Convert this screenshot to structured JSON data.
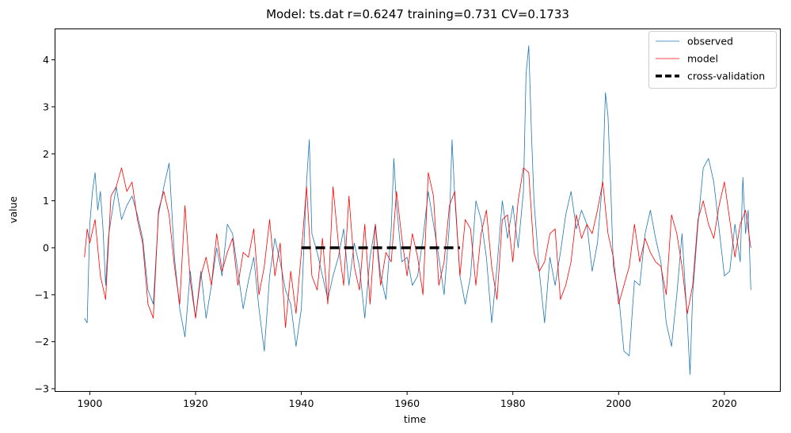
{
  "chart_data": {
    "type": "line",
    "title": "Model: ts.dat  r=0.6247  training=0.731  CV=0.1733",
    "xlabel": "time",
    "ylabel": "value",
    "xlim": [
      1893.5,
      2030.5
    ],
    "ylim": [
      -3.05,
      4.65
    ],
    "x_ticks": [
      1900,
      1920,
      1940,
      1960,
      1980,
      2000,
      2020
    ],
    "y_ticks": [
      -3,
      -2,
      -1,
      0,
      1,
      2,
      3,
      4
    ],
    "grid": false,
    "legend_position": "top-right",
    "series": [
      {
        "name": "observed",
        "color": "#1f77b4",
        "x": [
          1899.0,
          1899.5,
          1900.0,
          1900.5,
          1901.0,
          1901.5,
          1902.0,
          1902.5,
          1903.0,
          1903.5,
          1904.0,
          1905.0,
          1906.0,
          1907.0,
          1908.0,
          1909.0,
          1910.0,
          1911.0,
          1912.0,
          1913.0,
          1914.0,
          1915.0,
          1916.0,
          1917.0,
          1918.0,
          1919.0,
          1920.0,
          1921.0,
          1922.0,
          1923.0,
          1924.0,
          1925.0,
          1926.0,
          1927.0,
          1928.0,
          1929.0,
          1930.0,
          1931.0,
          1932.0,
          1933.0,
          1934.0,
          1935.0,
          1936.0,
          1937.0,
          1938.0,
          1939.0,
          1940.0,
          1941.0,
          1941.5,
          1942.0,
          1943.0,
          1944.0,
          1945.0,
          1946.0,
          1947.0,
          1948.0,
          1949.0,
          1950.0,
          1951.0,
          1952.0,
          1953.0,
          1954.0,
          1955.0,
          1956.0,
          1957.0,
          1957.5,
          1958.0,
          1959.0,
          1960.0,
          1961.0,
          1962.0,
          1963.0,
          1964.0,
          1965.0,
          1966.0,
          1967.0,
          1968.0,
          1968.5,
          1969.0,
          1970.0,
          1971.0,
          1972.0,
          1973.0,
          1974.0,
          1975.0,
          1976.0,
          1977.0,
          1978.0,
          1979.0,
          1980.0,
          1981.0,
          1982.0,
          1982.5,
          1983.0,
          1983.5,
          1984.0,
          1985.0,
          1986.0,
          1987.0,
          1988.0,
          1989.0,
          1990.0,
          1991.0,
          1992.0,
          1993.0,
          1994.0,
          1995.0,
          1996.0,
          1997.0,
          1997.5,
          1998.0,
          1998.5,
          1999.0,
          2000.0,
          2001.0,
          2002.0,
          2003.0,
          2004.0,
          2005.0,
          2006.0,
          2007.0,
          2008.0,
          2009.0,
          2010.0,
          2011.0,
          2012.0,
          2013.0,
          2013.5,
          2014.0,
          2015.0,
          2016.0,
          2017.0,
          2018.0,
          2019.0,
          2020.0,
          2021.0,
          2022.0,
          2023.0,
          2023.5,
          2024.0,
          2024.5,
          2025.0
        ],
        "y": [
          -1.5,
          -1.6,
          0.5,
          1.2,
          1.6,
          0.8,
          1.2,
          0.4,
          -0.8,
          0.2,
          0.6,
          1.3,
          0.6,
          0.9,
          1.1,
          0.7,
          0.2,
          -0.9,
          -1.2,
          0.7,
          1.3,
          1.8,
          -0.2,
          -1.3,
          -1.9,
          -0.5,
          -1.5,
          -0.5,
          -1.5,
          -0.8,
          0.0,
          -0.6,
          0.5,
          0.3,
          -0.5,
          -1.3,
          -0.7,
          -0.2,
          -1.3,
          -2.2,
          -0.6,
          0.2,
          -0.3,
          -0.9,
          -1.2,
          -2.1,
          -1.3,
          1.4,
          2.3,
          0.3,
          -0.1,
          -0.6,
          -1.1,
          -0.6,
          -0.2,
          0.4,
          -0.8,
          0.1,
          -0.4,
          -1.5,
          -0.2,
          0.5,
          -0.6,
          -1.1,
          0.4,
          1.9,
          0.9,
          -0.3,
          -0.2,
          -0.8,
          -0.6,
          0.2,
          1.2,
          0.5,
          -0.2,
          -1.0,
          0.5,
          2.3,
          1.1,
          -0.6,
          -1.2,
          -0.6,
          1.0,
          0.6,
          -0.2,
          -1.6,
          -0.4,
          1.0,
          0.2,
          0.9,
          0.0,
          1.2,
          3.7,
          4.3,
          2.5,
          1.0,
          -0.5,
          -1.6,
          -0.2,
          -0.8,
          -0.1,
          0.7,
          1.2,
          0.4,
          0.8,
          0.5,
          -0.5,
          0.1,
          1.5,
          3.3,
          2.8,
          1.3,
          -0.4,
          -1.0,
          -2.2,
          -2.3,
          -0.7,
          -0.8,
          0.3,
          0.8,
          0.2,
          -0.3,
          -1.6,
          -2.1,
          -1.0,
          0.3,
          -1.6,
          -2.7,
          -1.0,
          0.5,
          1.7,
          1.9,
          1.4,
          0.4,
          -0.6,
          -0.5,
          0.5,
          -0.3,
          1.5,
          0.3,
          0.8,
          -0.9
        ]
      },
      {
        "name": "model",
        "color": "#ff0000",
        "x": [
          1899.0,
          1899.5,
          1900.0,
          1901.0,
          1902.0,
          1903.0,
          1904.0,
          1905.0,
          1906.0,
          1907.0,
          1908.0,
          1909.0,
          1910.0,
          1911.0,
          1912.0,
          1913.0,
          1914.0,
          1915.0,
          1916.0,
          1917.0,
          1918.0,
          1919.0,
          1920.0,
          1921.0,
          1922.0,
          1923.0,
          1924.0,
          1925.0,
          1926.0,
          1927.0,
          1928.0,
          1929.0,
          1930.0,
          1931.0,
          1932.0,
          1933.0,
          1934.0,
          1935.0,
          1936.0,
          1937.0,
          1938.0,
          1939.0,
          1940.0,
          1941.0,
          1942.0,
          1943.0,
          1944.0,
          1945.0,
          1946.0,
          1947.0,
          1948.0,
          1949.0,
          1950.0,
          1951.0,
          1952.0,
          1953.0,
          1954.0,
          1955.0,
          1956.0,
          1957.0,
          1958.0,
          1959.0,
          1960.0,
          1961.0,
          1962.0,
          1963.0,
          1964.0,
          1965.0,
          1966.0,
          1967.0,
          1968.0,
          1969.0,
          1970.0,
          1971.0,
          1972.0,
          1973.0,
          1974.0,
          1975.0,
          1976.0,
          1977.0,
          1978.0,
          1979.0,
          1980.0,
          1981.0,
          1982.0,
          1983.0,
          1984.0,
          1985.0,
          1986.0,
          1987.0,
          1988.0,
          1989.0,
          1990.0,
          1991.0,
          1992.0,
          1993.0,
          1994.0,
          1995.0,
          1996.0,
          1997.0,
          1998.0,
          1999.0,
          2000.0,
          2001.0,
          2002.0,
          2003.0,
          2004.0,
          2005.0,
          2006.0,
          2007.0,
          2008.0,
          2009.0,
          2010.0,
          2011.0,
          2012.0,
          2013.0,
          2014.0,
          2015.0,
          2016.0,
          2017.0,
          2018.0,
          2019.0,
          2020.0,
          2021.0,
          2022.0,
          2023.0,
          2024.0,
          2025.0
        ],
        "y": [
          -0.2,
          0.4,
          0.1,
          0.6,
          -0.6,
          -1.1,
          1.1,
          1.3,
          1.7,
          1.2,
          1.4,
          0.6,
          0.1,
          -1.2,
          -1.5,
          0.8,
          1.2,
          0.7,
          -0.4,
          -1.2,
          0.9,
          -0.7,
          -1.5,
          -0.6,
          -0.2,
          -0.8,
          0.3,
          -0.5,
          -0.1,
          0.2,
          -0.8,
          -0.1,
          -0.2,
          0.4,
          -1.0,
          -0.4,
          0.6,
          -0.6,
          0.1,
          -1.7,
          -0.5,
          -1.4,
          -0.1,
          1.3,
          -0.6,
          -0.9,
          0.2,
          -1.2,
          1.3,
          0.1,
          -0.8,
          1.1,
          -0.4,
          -0.9,
          0.5,
          -1.2,
          0.5,
          -0.8,
          -0.1,
          -0.3,
          1.2,
          0.2,
          -0.6,
          0.3,
          -0.2,
          -1.0,
          1.6,
          1.1,
          -0.8,
          -0.3,
          0.9,
          1.2,
          -0.6,
          0.6,
          0.4,
          -0.8,
          0.3,
          0.8,
          -0.4,
          -1.1,
          0.6,
          0.7,
          -0.3,
          1.0,
          1.7,
          1.6,
          -0.1,
          -0.5,
          -0.3,
          0.3,
          0.4,
          -1.1,
          -0.8,
          -0.3,
          0.7,
          0.2,
          0.5,
          0.3,
          0.8,
          1.4,
          0.3,
          -0.2,
          -1.2,
          -0.8,
          -0.4,
          0.5,
          -0.3,
          0.2,
          -0.1,
          -0.3,
          -0.4,
          -1.0,
          0.7,
          0.3,
          -0.4,
          -1.4,
          -0.8,
          0.6,
          1.0,
          0.5,
          0.2,
          0.9,
          1.4,
          0.6,
          -0.2,
          0.5,
          0.8,
          0.0
        ]
      },
      {
        "name": "cross-validation",
        "color": "#000000",
        "dashed": true,
        "x": [
          1940,
          1970
        ],
        "y": [
          0,
          0
        ]
      }
    ]
  }
}
